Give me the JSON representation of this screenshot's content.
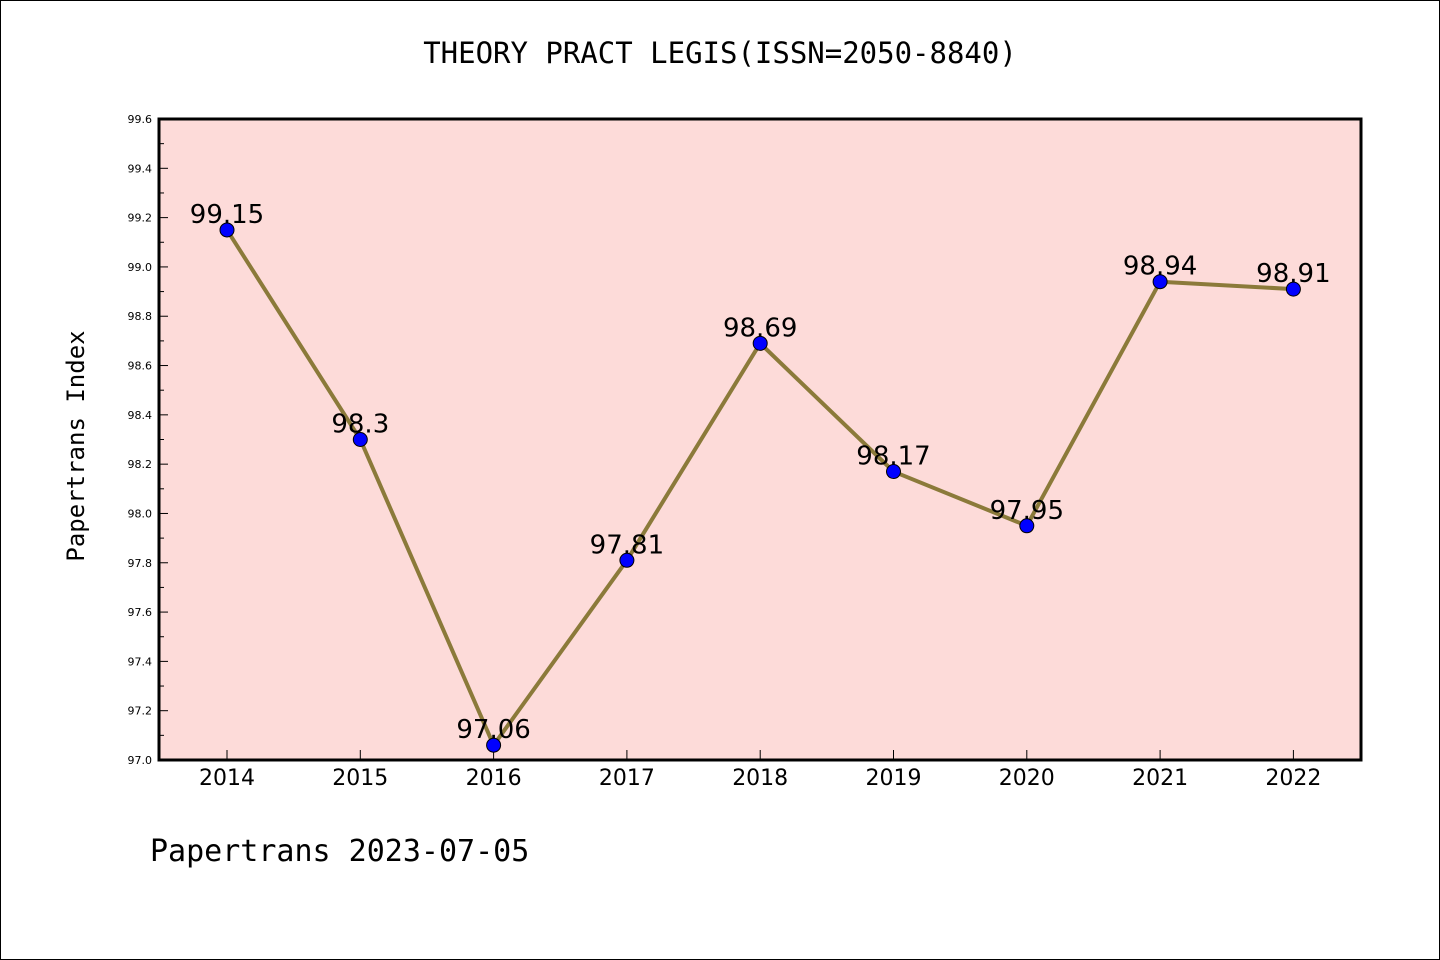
{
  "chart_data": {
    "type": "line",
    "title": "THEORY PRACT LEGIS(ISSN=2050-8840)",
    "xlabel": "",
    "ylabel": "Papertrans Index",
    "categories": [
      "2014",
      "2015",
      "2016",
      "2017",
      "2018",
      "2019",
      "2020",
      "2021",
      "2022"
    ],
    "series": [
      {
        "values": [
          99.15,
          98.3,
          97.06,
          97.81,
          98.69,
          98.17,
          97.95,
          98.94,
          98.91
        ],
        "labels": [
          "99.15",
          "98.3",
          "97.06",
          "97.81",
          "98.69",
          "98.17",
          "97.95",
          "98.94",
          "98.91"
        ]
      }
    ],
    "ylim": [
      97.0,
      99.6
    ],
    "yticks": [
      "97.0",
      "97.2",
      "97.4",
      "97.6",
      "97.8",
      "98.0",
      "98.2",
      "98.4",
      "98.6",
      "98.8",
      "99.0",
      "99.2",
      "99.4",
      "99.6"
    ],
    "grid": false,
    "legend": "none",
    "colors": {
      "line": "#8B7A3A",
      "marker": "#0000FF",
      "plot_background": "#FDDBD9",
      "page_background": "#FFFFFF"
    }
  },
  "footer": {
    "note": "Papertrans 2023-07-05"
  }
}
